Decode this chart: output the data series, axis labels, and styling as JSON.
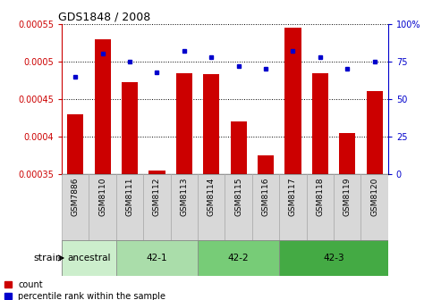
{
  "title": "GDS1848 / 2008",
  "categories": [
    "GSM7886",
    "GSM8110",
    "GSM8111",
    "GSM8112",
    "GSM8113",
    "GSM8114",
    "GSM8115",
    "GSM8116",
    "GSM8117",
    "GSM8118",
    "GSM8119",
    "GSM8120"
  ],
  "count_values": [
    0.00043,
    0.00053,
    0.000472,
    0.000355,
    0.000484,
    0.000483,
    0.00042,
    0.000375,
    0.000545,
    0.000484,
    0.000405,
    0.00046
  ],
  "percentile_values": [
    65,
    80,
    75,
    68,
    82,
    78,
    72,
    70,
    82,
    78,
    70,
    75
  ],
  "ylim_left": [
    0.00035,
    0.00055
  ],
  "ylim_right": [
    0,
    100
  ],
  "yticks_left": [
    0.00035,
    0.0004,
    0.00045,
    0.0005,
    0.00055
  ],
  "yticks_right": [
    0,
    25,
    50,
    75,
    100
  ],
  "bar_color": "#CC0000",
  "dot_color": "#0000CC",
  "strain_groups": [
    {
      "label": "ancestral",
      "start": 0,
      "end": 1,
      "color": "#cceecc"
    },
    {
      "label": "42-1",
      "start": 2,
      "end": 4,
      "color": "#aaddaa"
    },
    {
      "label": "42-2",
      "start": 5,
      "end": 7,
      "color": "#77cc77"
    },
    {
      "label": "42-3",
      "start": 8,
      "end": 11,
      "color": "#44aa44"
    }
  ],
  "strain_label": "strain",
  "legend_count": "count",
  "legend_percentile": "percentile rank within the sample",
  "tick_color_left": "#CC0000",
  "tick_color_right": "#0000CC",
  "bar_width": 0.6,
  "ytick_labels_left": [
    "0.00035",
    "0.0004",
    "0.00045",
    "0.0005",
    "0.00055"
  ],
  "ytick_labels_right": [
    "0",
    "25",
    "50",
    "75",
    "100%"
  ]
}
